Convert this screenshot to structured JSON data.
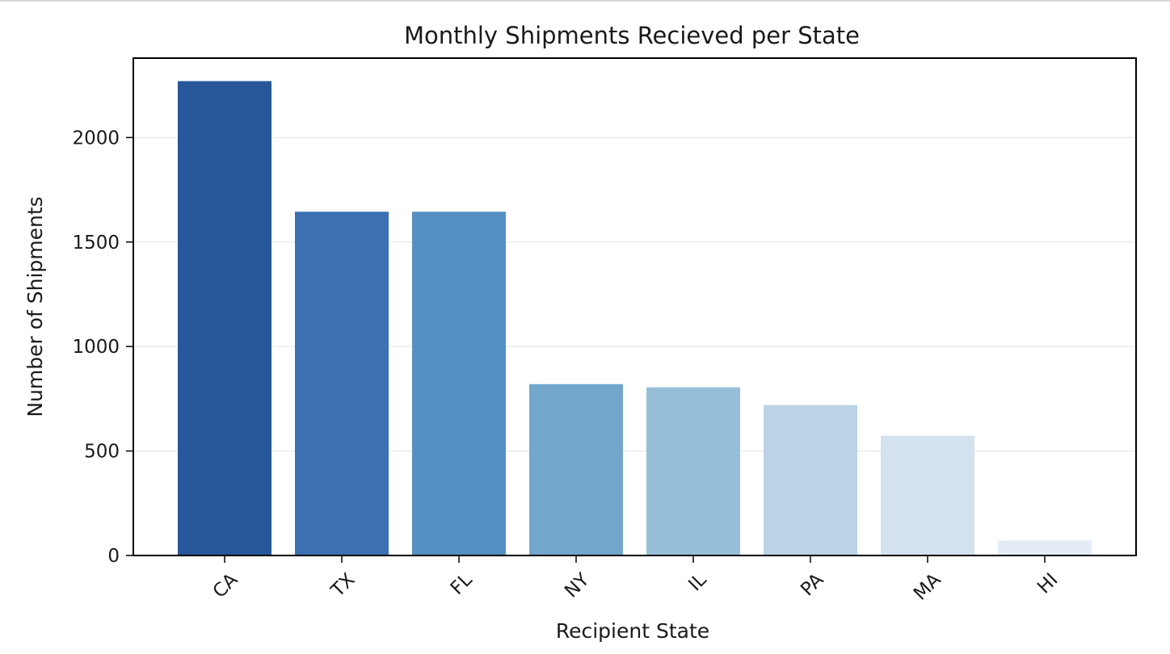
{
  "chart_data": {
    "type": "bar",
    "title": "Monthly Shipments Recieved per State",
    "xlabel": "Recipient State",
    "ylabel": "Number of Shipments",
    "categories": [
      "CA",
      "TX",
      "FL",
      "NY",
      "IL",
      "PA",
      "MA",
      "HI"
    ],
    "values": [
      2270,
      1645,
      1645,
      820,
      805,
      720,
      573,
      72
    ],
    "colors": [
      "#28579a",
      "#3d70b0",
      "#5490c2",
      "#72a6cd",
      "#98bfd9",
      "#bbd3e6",
      "#d4e1ef",
      "#e4ecf7"
    ],
    "yticks": [
      0,
      500,
      1000,
      1500,
      2000
    ],
    "ylim": [
      0,
      2380
    ],
    "grid": "y",
    "x_tick_rotation": 45
  }
}
